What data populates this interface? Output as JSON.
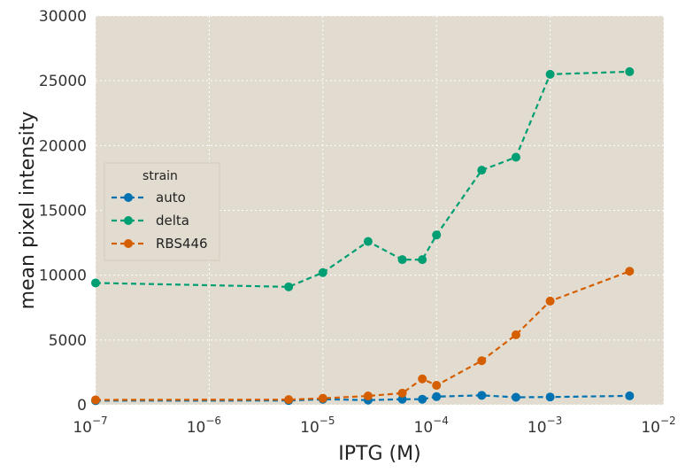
{
  "chart_data": {
    "type": "line",
    "title": "",
    "xlabel": "IPTG (M)",
    "ylabel": "mean pixel intensity",
    "xscale": "log",
    "xlim": [
      1e-07,
      0.01
    ],
    "ylim": [
      0,
      30000
    ],
    "x_ticks": [
      {
        "value": 1e-07,
        "base": "10",
        "exp": "−7"
      },
      {
        "value": 1e-06,
        "base": "10",
        "exp": "−6"
      },
      {
        "value": 1e-05,
        "base": "10",
        "exp": "−5"
      },
      {
        "value": 0.0001,
        "base": "10",
        "exp": "−4"
      },
      {
        "value": 0.001,
        "base": "10",
        "exp": "−3"
      },
      {
        "value": 0.01,
        "base": "10",
        "exp": "−2"
      }
    ],
    "y_ticks": [
      {
        "value": 0,
        "label": "0"
      },
      {
        "value": 5000,
        "label": "5000"
      },
      {
        "value": 10000,
        "label": "10000"
      },
      {
        "value": 15000,
        "label": "15000"
      },
      {
        "value": 20000,
        "label": "20000"
      },
      {
        "value": 25000,
        "label": "25000"
      },
      {
        "value": 30000,
        "label": "30000"
      }
    ],
    "grid": true,
    "background": "#e1dccf",
    "legend": {
      "title": "strain",
      "placement": "center-left"
    },
    "series": [
      {
        "name": "auto",
        "color": "#0072b2",
        "x": [
          1e-07,
          5e-06,
          1e-05,
          2.5e-05,
          5e-05,
          7.5e-05,
          0.0001,
          0.00025,
          0.0005,
          0.001,
          0.005
        ],
        "y": [
          320,
          330,
          430,
          360,
          430,
          430,
          630,
          730,
          580,
          600,
          690
        ]
      },
      {
        "name": "delta",
        "color": "#009e73",
        "x": [
          1e-07,
          5e-06,
          1e-05,
          2.5e-05,
          5e-05,
          7.5e-05,
          0.0001,
          0.00025,
          0.0005,
          0.001,
          0.005
        ],
        "y": [
          9400,
          9100,
          10200,
          12600,
          11200,
          11200,
          13100,
          18100,
          19100,
          25500,
          25700
        ]
      },
      {
        "name": "RBS446",
        "color": "#d55e00",
        "x": [
          1e-07,
          5e-06,
          1e-05,
          2.5e-05,
          5e-05,
          7.5e-05,
          0.0001,
          0.00025,
          0.0005,
          0.001,
          0.005
        ],
        "y": [
          380,
          400,
          500,
          680,
          900,
          2000,
          1500,
          3400,
          5400,
          8000,
          10300
        ]
      }
    ]
  }
}
